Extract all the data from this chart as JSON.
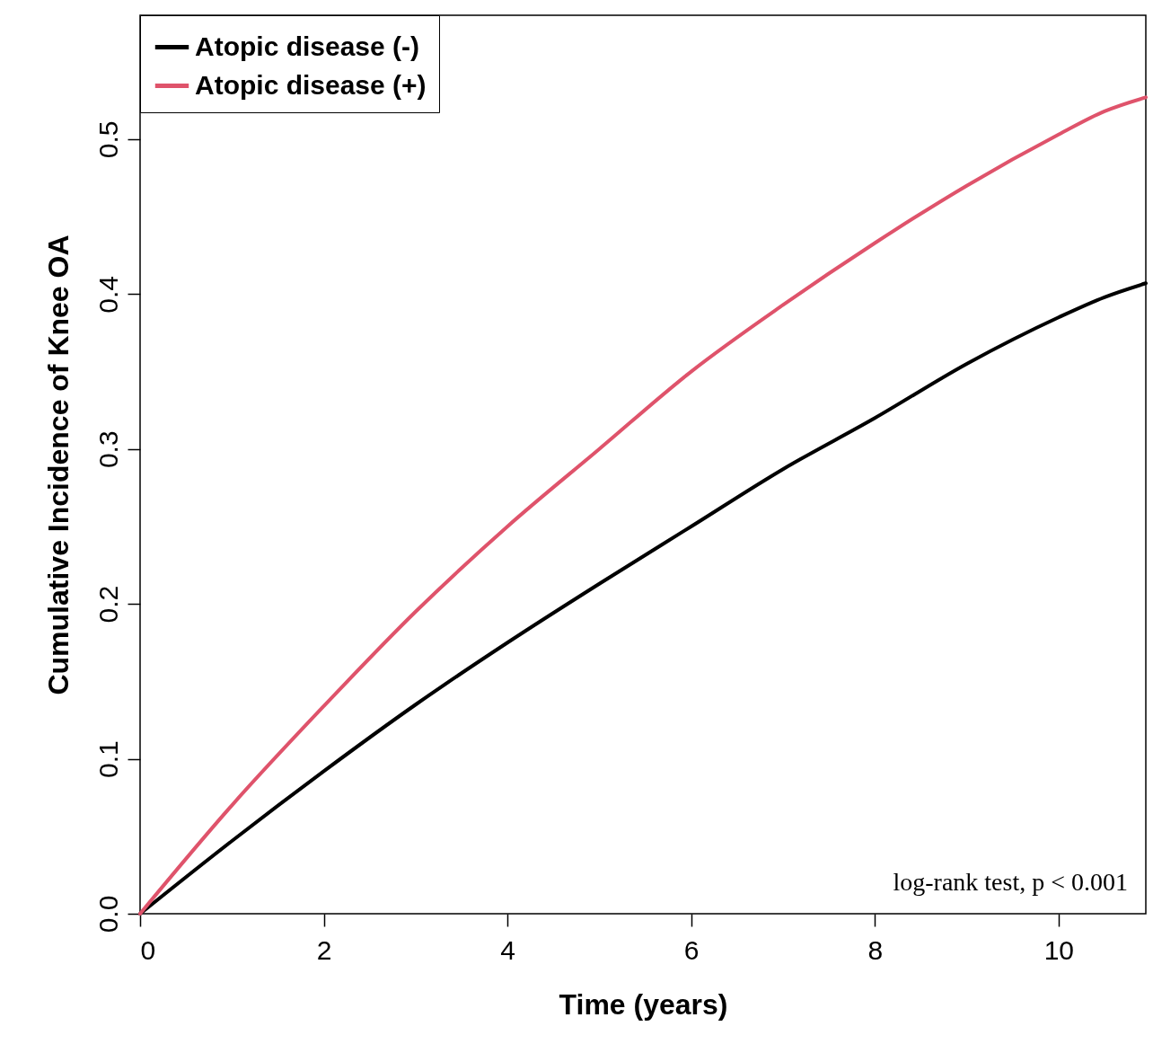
{
  "chart_data": {
    "type": "line",
    "xlabel": "Time (years)",
    "ylabel": "Cumulative Incidence of Knee OA",
    "x": [
      0,
      1,
      2,
      3,
      4,
      5,
      6,
      7,
      8,
      9,
      10,
      10.5,
      10.95
    ],
    "series": [
      {
        "name": "Atopic disease (-)",
        "color": "#000000",
        "values": [
          0,
          0.047,
          0.092,
          0.135,
          0.175,
          0.213,
          0.25,
          0.287,
          0.32,
          0.355,
          0.385,
          0.398,
          0.407
        ]
      },
      {
        "name": "Atopic disease (+)",
        "color": "#df536b",
        "values": [
          0,
          0.07,
          0.134,
          0.195,
          0.25,
          0.3,
          0.35,
          0.393,
          0.433,
          0.47,
          0.503,
          0.518,
          0.527
        ]
      }
    ],
    "xlim": [
      0,
      10.95
    ],
    "ylim": [
      0,
      0.58
    ],
    "xticks": [
      0,
      2,
      4,
      6,
      8,
      10
    ],
    "yticks": [
      {
        "value": 0,
        "label": "0.0"
      },
      0.1,
      0.2,
      0.3,
      0.4,
      0.5
    ],
    "legend": "top left",
    "grid": false,
    "marker": "none",
    "line_style": "solid",
    "annotations": [
      "log-rank test, p < 0.001"
    ]
  }
}
